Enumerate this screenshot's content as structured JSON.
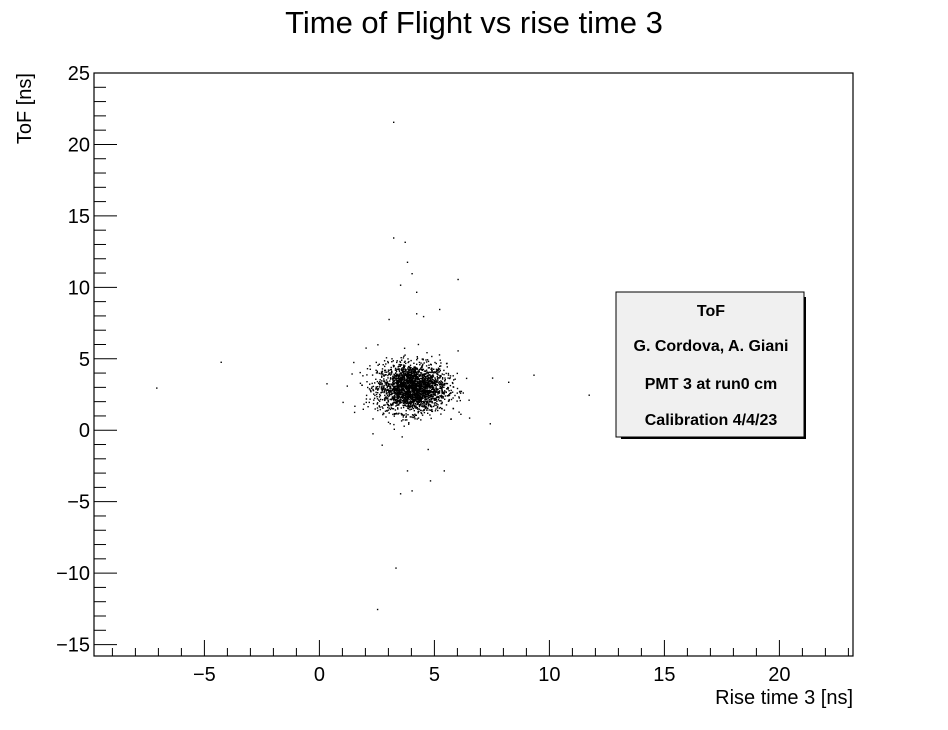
{
  "chart_data": {
    "type": "scatter",
    "title": "Time of Flight vs rise time 3",
    "xlabel": "Rise time 3 [ns]",
    "ylabel": "ToF [ns]",
    "xlim": [
      -9.8,
      23.2
    ],
    "ylim": [
      -15.8,
      25.0
    ],
    "x_ticks": [
      -5,
      0,
      5,
      10,
      15,
      20
    ],
    "x_tick_labels": [
      "−5",
      "0",
      "5",
      "10",
      "15",
      "20"
    ],
    "y_ticks": [
      -15,
      -10,
      -5,
      0,
      5,
      10,
      15,
      20,
      25
    ],
    "y_tick_labels": [
      "−15",
      "−10",
      "−5",
      "0",
      "5",
      "10",
      "15",
      "20",
      "25"
    ],
    "grid": false,
    "marker_color": "#000000",
    "cluster": {
      "x_center": 4.0,
      "y_center": 3.0,
      "x_spread": 0.75,
      "y_spread": 0.85,
      "approx_count": 2400
    },
    "outliers": [
      [
        3.2,
        21.6
      ],
      [
        3.2,
        13.5
      ],
      [
        3.7,
        13.2
      ],
      [
        3.8,
        11.8
      ],
      [
        4.0,
        11.0
      ],
      [
        3.5,
        10.2
      ],
      [
        6.0,
        10.6
      ],
      [
        4.2,
        9.7
      ],
      [
        5.2,
        8.5
      ],
      [
        4.2,
        8.2
      ],
      [
        4.5,
        8.0
      ],
      [
        3.0,
        7.8
      ],
      [
        -4.3,
        4.8
      ],
      [
        -7.1,
        3.0
      ],
      [
        0.3,
        3.3
      ],
      [
        1.0,
        2.0
      ],
      [
        9.3,
        3.9
      ],
      [
        11.7,
        2.5
      ],
      [
        7.5,
        3.7
      ],
      [
        8.2,
        3.4
      ],
      [
        7.4,
        0.5
      ],
      [
        2.3,
        -0.2
      ],
      [
        2.7,
        -1.0
      ],
      [
        4.7,
        -1.3
      ],
      [
        3.8,
        -2.8
      ],
      [
        5.4,
        -2.8
      ],
      [
        3.5,
        -4.4
      ],
      [
        4.0,
        -4.2
      ],
      [
        4.8,
        -3.5
      ],
      [
        3.3,
        -9.6
      ],
      [
        2.5,
        -12.5
      ],
      [
        1.5,
        1.3
      ],
      [
        6.5,
        0.9
      ],
      [
        2.0,
        5.8
      ],
      [
        6.0,
        5.6
      ]
    ]
  },
  "legend": {
    "lines": [
      "ToF",
      "G. Cordova, A. Giani",
      "PMT 3 at run0 cm",
      "Calibration 4/4/23"
    ]
  }
}
